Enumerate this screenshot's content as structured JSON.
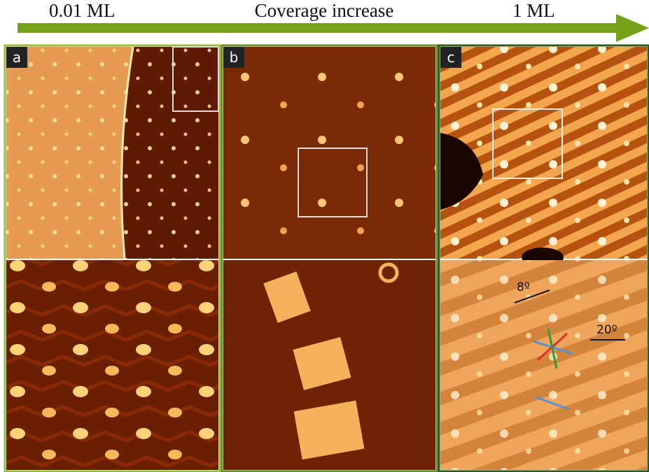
{
  "header": {
    "start_label": "0.01 ML",
    "title": "Coverage increase",
    "end_label": "1 ML"
  },
  "panels": [
    {
      "label": "a"
    },
    {
      "label": "b"
    },
    {
      "label": "c",
      "annotations": [
        "8º",
        "20º"
      ]
    }
  ]
}
